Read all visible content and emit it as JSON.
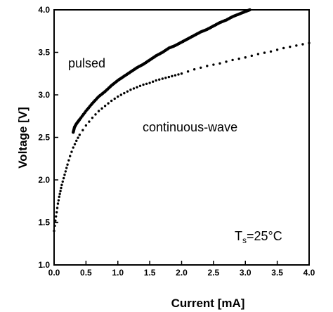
{
  "chart_data": {
    "type": "scatter",
    "xlabel": "Current [mA]",
    "ylabel": "Voltage [V]",
    "xlim": [
      0.0,
      4.0
    ],
    "ylim": [
      1.0,
      4.0
    ],
    "grid": false,
    "x_ticks": [
      "0.0",
      "0.5",
      "1.0",
      "1.5",
      "2.0",
      "2.5",
      "3.0",
      "3.5",
      "4.0"
    ],
    "y_ticks": [
      "1.0",
      "1.5",
      "2.0",
      "2.5",
      "3.0",
      "3.5",
      "4.0"
    ],
    "annotations": {
      "pulsed": "pulsed",
      "continuous_wave": "continuous-wave",
      "temp_T": "T",
      "temp_sub": "s",
      "temp_value": "=25°C"
    },
    "series": [
      {
        "name": "pulsed",
        "x": [
          0.3,
          0.32,
          0.35,
          0.4,
          0.5,
          0.6,
          0.7,
          0.8,
          0.9,
          1.0,
          1.1,
          1.2,
          1.3,
          1.4,
          1.5,
          1.6,
          1.7,
          1.8,
          1.9,
          2.0,
          2.1,
          2.2,
          2.3,
          2.4,
          2.5,
          2.6,
          2.7,
          2.8,
          2.9,
          3.0,
          3.07
        ],
        "y": [
          2.56,
          2.62,
          2.66,
          2.71,
          2.81,
          2.9,
          2.98,
          3.04,
          3.11,
          3.17,
          3.22,
          3.27,
          3.32,
          3.36,
          3.41,
          3.46,
          3.5,
          3.55,
          3.58,
          3.62,
          3.66,
          3.7,
          3.74,
          3.77,
          3.81,
          3.85,
          3.88,
          3.92,
          3.95,
          3.98,
          4.0
        ]
      },
      {
        "name": "continuous-wave",
        "x": [
          0.0,
          0.02,
          0.04,
          0.06,
          0.08,
          0.1,
          0.12,
          0.15,
          0.18,
          0.21,
          0.25,
          0.3,
          0.35,
          0.4,
          0.5,
          0.6,
          0.7,
          0.8,
          0.9,
          1.0,
          1.1,
          1.2,
          1.3,
          1.4,
          1.5,
          1.6,
          1.7,
          1.8,
          1.9,
          2.0,
          2.2,
          2.4,
          2.6,
          2.8,
          3.0,
          3.2,
          3.4,
          3.6,
          3.8,
          4.0
        ],
        "y": [
          1.4,
          1.52,
          1.62,
          1.72,
          1.8,
          1.87,
          1.94,
          2.02,
          2.1,
          2.18,
          2.28,
          2.38,
          2.46,
          2.53,
          2.64,
          2.73,
          2.81,
          2.87,
          2.93,
          2.98,
          3.02,
          3.06,
          3.09,
          3.12,
          3.14,
          3.17,
          3.19,
          3.21,
          3.23,
          3.25,
          3.3,
          3.34,
          3.37,
          3.41,
          3.44,
          3.48,
          3.51,
          3.55,
          3.58,
          3.61
        ]
      }
    ]
  }
}
